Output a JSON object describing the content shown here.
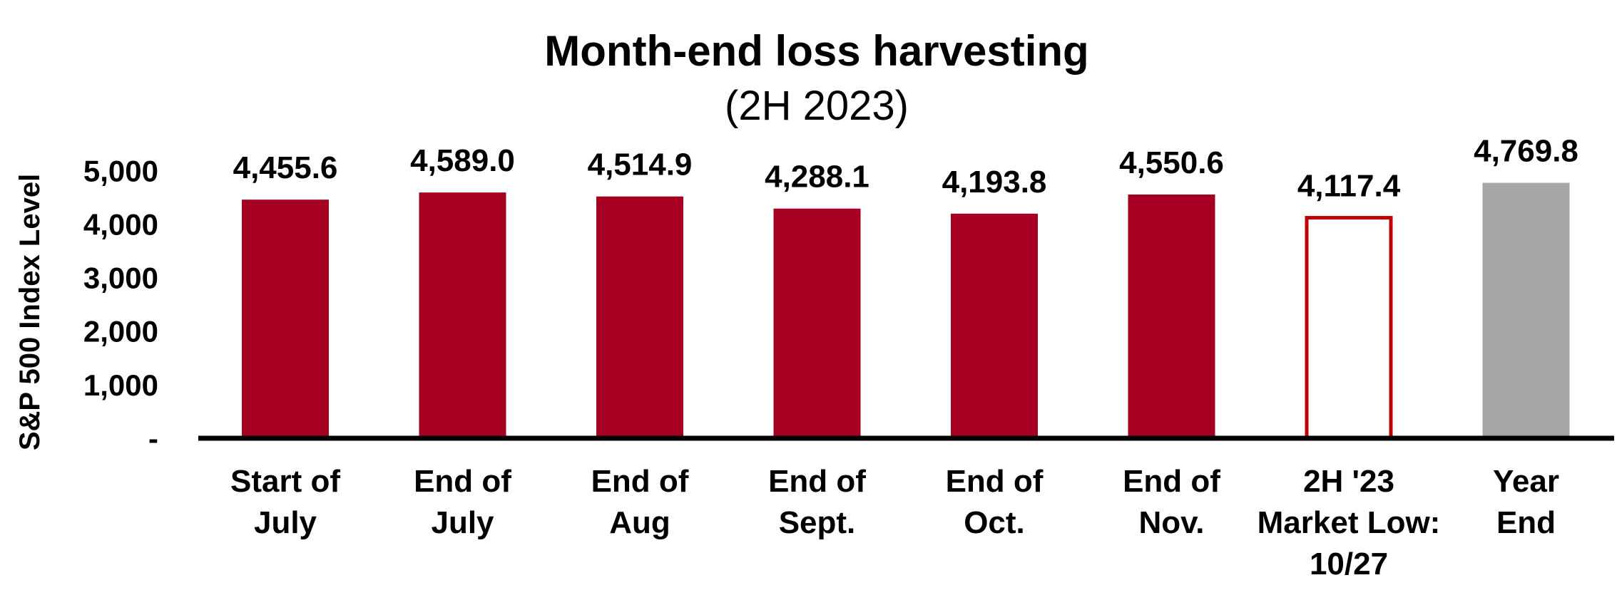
{
  "chart_data": {
    "type": "bar",
    "title": "Month-end loss harvesting",
    "subtitle": "(2H 2023)",
    "xlabel": "",
    "ylabel": "S&P 500 Index Level",
    "ylim": [
      0,
      5000
    ],
    "yticks": [
      0,
      1000,
      2000,
      3000,
      4000,
      5000
    ],
    "ytick_labels": [
      "-",
      "1,000",
      "2,000",
      "3,000",
      "4,000",
      "5,000"
    ],
    "grid": false,
    "legend": "none",
    "categories": [
      [
        "Start of",
        "July"
      ],
      [
        "End of",
        "July"
      ],
      [
        "End of",
        "Aug"
      ],
      [
        "End of",
        "Sept."
      ],
      [
        "End of",
        "Oct."
      ],
      [
        "End of",
        "Nov."
      ],
      [
        "2H '23",
        "Market Low:",
        "10/27"
      ],
      [
        "Year",
        "End"
      ]
    ],
    "values": [
      4455.6,
      4589.0,
      4514.9,
      4288.1,
      4193.8,
      4550.6,
      4117.4,
      4769.8
    ],
    "data_labels": [
      "4,455.6",
      "4,589.0",
      "4,514.9",
      "4,288.1",
      "4,193.8",
      "4,550.6",
      "4,117.4",
      "4,769.8"
    ],
    "bar_styles": [
      "solid",
      "solid",
      "solid",
      "solid",
      "solid",
      "solid",
      "outline",
      "solid"
    ],
    "bar_colors": [
      "#a50021",
      "#a50021",
      "#a50021",
      "#a50021",
      "#a50021",
      "#a50021",
      "#c00000",
      "#a6a6a6"
    ]
  }
}
